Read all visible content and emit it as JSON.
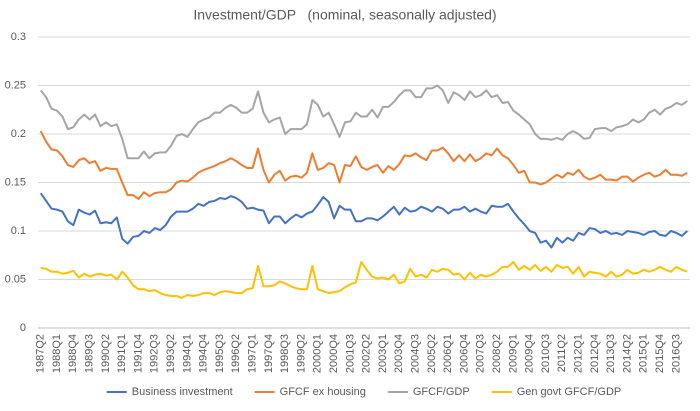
{
  "chart_data": {
    "type": "line",
    "title": "Investment/GDP   (nominal, seasonally adjusted)",
    "categories": [
      "1987Q2",
      null,
      null,
      "1988Q1",
      null,
      null,
      "1988Q4",
      null,
      null,
      "1989Q3",
      null,
      null,
      "1990Q2",
      null,
      null,
      "1991Q1",
      null,
      null,
      "1991Q4",
      null,
      null,
      "1992Q3",
      null,
      null,
      "1993Q2",
      null,
      null,
      "1994Q1",
      null,
      null,
      "1994Q4",
      null,
      null,
      "1995Q3",
      null,
      null,
      "1996Q2",
      null,
      null,
      "1997Q1",
      null,
      null,
      "1997Q4",
      null,
      null,
      "1998Q3",
      null,
      null,
      "1999Q2",
      null,
      null,
      "2000Q1",
      null,
      null,
      "2000Q4",
      null,
      null,
      "2001Q3",
      null,
      null,
      "2002Q2",
      null,
      null,
      "2003Q1",
      null,
      null,
      "2003Q4",
      null,
      null,
      "2004Q3",
      null,
      null,
      "2005Q2",
      null,
      null,
      "2006Q1",
      null,
      null,
      "2006Q4",
      null,
      null,
      "2007Q3",
      null,
      null,
      "2008Q2",
      null,
      null,
      "2009Q1",
      null,
      null,
      "2009Q4",
      null,
      null,
      "2010Q3",
      null,
      null,
      "2011Q2",
      null,
      null,
      "2012Q1",
      null,
      null,
      "2012Q4",
      null,
      null,
      "2013Q3",
      null,
      null,
      "2014Q2",
      null,
      null,
      "2015Q1",
      null,
      null,
      "2015Q4",
      null,
      null,
      "2016Q3",
      null,
      null
    ],
    "series": [
      {
        "name": "Business investment",
        "color": "#4472c4",
        "values": [
          0.139,
          0.131,
          0.123,
          0.122,
          0.12,
          0.11,
          0.106,
          0.122,
          0.119,
          0.117,
          0.121,
          0.108,
          0.109,
          0.108,
          0.114,
          0.092,
          0.087,
          0.094,
          0.095,
          0.1,
          0.098,
          0.103,
          0.101,
          0.106,
          0.115,
          0.12,
          0.12,
          0.12,
          0.123,
          0.128,
          0.126,
          0.13,
          0.131,
          0.134,
          0.133,
          0.136,
          0.134,
          0.13,
          0.123,
          0.124,
          0.122,
          0.121,
          0.108,
          0.115,
          0.115,
          0.108,
          0.113,
          0.117,
          0.114,
          0.118,
          0.12,
          0.127,
          0.135,
          0.13,
          0.113,
          0.126,
          0.122,
          0.122,
          0.11,
          0.11,
          0.113,
          0.113,
          0.111,
          0.115,
          0.12,
          0.125,
          0.117,
          0.124,
          0.12,
          0.121,
          0.125,
          0.123,
          0.12,
          0.125,
          0.123,
          0.118,
          0.122,
          0.122,
          0.125,
          0.12,
          0.123,
          0.12,
          0.118,
          0.126,
          0.125,
          0.125,
          0.128,
          0.12,
          0.113,
          0.107,
          0.1,
          0.098,
          0.088,
          0.09,
          0.083,
          0.093,
          0.088,
          0.093,
          0.09,
          0.098,
          0.096,
          0.103,
          0.102,
          0.098,
          0.1,
          0.097,
          0.098,
          0.096,
          0.1,
          0.099,
          0.098,
          0.096,
          0.099,
          0.1,
          0.096,
          0.095,
          0.1,
          0.098,
          0.095,
          0.1
        ]
      },
      {
        "name": "GFCF ex housing",
        "color": "#ed7d31",
        "values": [
          0.203,
          0.192,
          0.184,
          0.183,
          0.177,
          0.168,
          0.166,
          0.173,
          0.175,
          0.17,
          0.172,
          0.162,
          0.165,
          0.164,
          0.164,
          0.15,
          0.137,
          0.137,
          0.133,
          0.14,
          0.136,
          0.139,
          0.14,
          0.14,
          0.143,
          0.15,
          0.152,
          0.151,
          0.155,
          0.16,
          0.163,
          0.165,
          0.167,
          0.17,
          0.172,
          0.175,
          0.172,
          0.168,
          0.165,
          0.165,
          0.185,
          0.163,
          0.15,
          0.158,
          0.162,
          0.152,
          0.156,
          0.157,
          0.155,
          0.16,
          0.18,
          0.163,
          0.165,
          0.17,
          0.168,
          0.15,
          0.168,
          0.167,
          0.177,
          0.166,
          0.163,
          0.166,
          0.168,
          0.16,
          0.167,
          0.163,
          0.169,
          0.178,
          0.177,
          0.18,
          0.176,
          0.173,
          0.183,
          0.183,
          0.186,
          0.18,
          0.172,
          0.178,
          0.172,
          0.179,
          0.172,
          0.175,
          0.18,
          0.178,
          0.185,
          0.178,
          0.175,
          0.168,
          0.16,
          0.162,
          0.15,
          0.15,
          0.148,
          0.15,
          0.154,
          0.158,
          0.155,
          0.16,
          0.158,
          0.163,
          0.156,
          0.153,
          0.155,
          0.158,
          0.153,
          0.153,
          0.152,
          0.156,
          0.156,
          0.151,
          0.155,
          0.158,
          0.16,
          0.156,
          0.158,
          0.163,
          0.158,
          0.158,
          0.157,
          0.16
        ]
      },
      {
        "name": "GFCF/GDP",
        "color": "#a5a5a5",
        "values": [
          0.245,
          0.238,
          0.226,
          0.224,
          0.218,
          0.205,
          0.207,
          0.215,
          0.22,
          0.215,
          0.22,
          0.208,
          0.212,
          0.208,
          0.21,
          0.195,
          0.175,
          0.175,
          0.175,
          0.182,
          0.175,
          0.18,
          0.181,
          0.181,
          0.188,
          0.198,
          0.2,
          0.197,
          0.205,
          0.212,
          0.215,
          0.217,
          0.222,
          0.222,
          0.227,
          0.23,
          0.227,
          0.222,
          0.222,
          0.226,
          0.244,
          0.222,
          0.212,
          0.215,
          0.217,
          0.2,
          0.205,
          0.205,
          0.205,
          0.21,
          0.235,
          0.23,
          0.218,
          0.222,
          0.21,
          0.197,
          0.212,
          0.213,
          0.222,
          0.218,
          0.218,
          0.225,
          0.217,
          0.228,
          0.228,
          0.233,
          0.24,
          0.245,
          0.245,
          0.238,
          0.238,
          0.247,
          0.247,
          0.25,
          0.245,
          0.232,
          0.243,
          0.24,
          0.235,
          0.244,
          0.238,
          0.24,
          0.245,
          0.238,
          0.24,
          0.232,
          0.233,
          0.224,
          0.22,
          0.215,
          0.21,
          0.2,
          0.195,
          0.195,
          0.194,
          0.196,
          0.194,
          0.2,
          0.203,
          0.2,
          0.195,
          0.196,
          0.205,
          0.206,
          0.206,
          0.203,
          0.207,
          0.208,
          0.21,
          0.215,
          0.212,
          0.215,
          0.222,
          0.225,
          0.22,
          0.226,
          0.228,
          0.232,
          0.23,
          0.234
        ]
      },
      {
        "name": "Gen govt GFCF/GDP",
        "color": "#ffc000",
        "values": [
          0.062,
          0.061,
          0.058,
          0.058,
          0.056,
          0.057,
          0.059,
          0.052,
          0.056,
          0.053,
          0.055,
          0.056,
          0.054,
          0.055,
          0.05,
          0.058,
          0.052,
          0.044,
          0.04,
          0.04,
          0.038,
          0.039,
          0.036,
          0.034,
          0.033,
          0.033,
          0.031,
          0.034,
          0.033,
          0.034,
          0.036,
          0.036,
          0.034,
          0.037,
          0.038,
          0.037,
          0.036,
          0.036,
          0.04,
          0.041,
          0.064,
          0.043,
          0.043,
          0.044,
          0.048,
          0.046,
          0.043,
          0.041,
          0.04,
          0.04,
          0.064,
          0.04,
          0.038,
          0.036,
          0.037,
          0.038,
          0.042,
          0.045,
          0.047,
          0.068,
          0.06,
          0.053,
          0.051,
          0.052,
          0.05,
          0.055,
          0.046,
          0.048,
          0.061,
          0.053,
          0.055,
          0.052,
          0.06,
          0.058,
          0.061,
          0.06,
          0.055,
          0.056,
          0.05,
          0.057,
          0.051,
          0.055,
          0.053,
          0.055,
          0.058,
          0.063,
          0.063,
          0.068,
          0.06,
          0.064,
          0.06,
          0.065,
          0.059,
          0.063,
          0.058,
          0.065,
          0.062,
          0.063,
          0.056,
          0.063,
          0.053,
          0.058,
          0.057,
          0.056,
          0.053,
          0.058,
          0.053,
          0.055,
          0.06,
          0.056,
          0.057,
          0.06,
          0.058,
          0.06,
          0.063,
          0.06,
          0.058,
          0.063,
          0.06,
          0.058
        ]
      }
    ],
    "ylim": [
      0,
      0.3
    ],
    "yticks": [
      0,
      0.05,
      0.1,
      0.15,
      0.2,
      0.25,
      0.3
    ],
    "grid": true,
    "legend": "bottom"
  }
}
